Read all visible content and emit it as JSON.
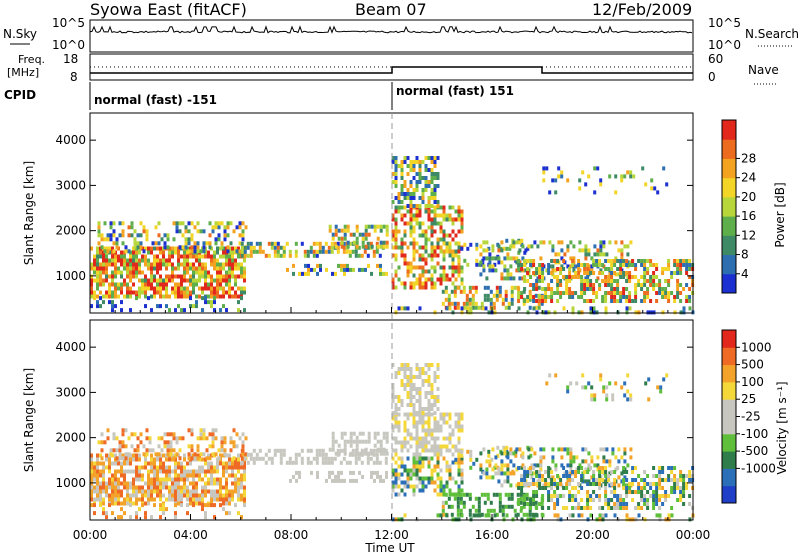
{
  "header": {
    "station": "Syowa East (fitACF)",
    "beam": "Beam 07",
    "date": "12/Feb/2009"
  },
  "top_panels": {
    "nsky_label": "N.Sky",
    "nsky_ticks": [
      "10^5",
      "10^0"
    ],
    "nsearch_label": "N.Search",
    "nsearch_ticks": [
      "10^5",
      "10^0"
    ],
    "freq_label_1": "Freq.",
    "freq_label_2": "[MHz]",
    "freq_ticks": [
      "18",
      "8"
    ],
    "nave_label": "Nave",
    "nave_ticks": [
      "60",
      "0"
    ],
    "cpid_label": "CPID",
    "cpid_segments": [
      {
        "label": "normal (fast) -151",
        "start_hour": 0
      },
      {
        "label": "normal (fast) 151",
        "start_hour": 12
      }
    ]
  },
  "chart_data": [
    {
      "type": "heatmap",
      "panel": "power",
      "ylabel": "Slant Range [km]",
      "ylim": [
        180,
        4600
      ],
      "yticks": [
        "1000",
        "2000",
        "3000",
        "4000"
      ],
      "xlim_hours": [
        0,
        24
      ],
      "colorbar_label": "Power [dB]",
      "colorbar_ticks": [
        "4",
        "8",
        "12",
        "16",
        "20",
        "24",
        "28"
      ],
      "colors": [
        "#1c2fd0",
        "#2d6eb0",
        "#3f8a66",
        "#5eae4c",
        "#b7d63a",
        "#f2d526",
        "#f3a31f",
        "#ec6b1f",
        "#e2281c"
      ]
    },
    {
      "type": "heatmap",
      "panel": "velocity",
      "ylabel": "Slant Range [km]",
      "ylim": [
        180,
        4600
      ],
      "yticks": [
        "1000",
        "2000",
        "3000",
        "4000"
      ],
      "xlim_hours": [
        0,
        24
      ],
      "colorbar_label": "Velocity [m s⁻¹]",
      "colorbar_ticks": [
        "1000",
        "500",
        "100",
        "25",
        "-25",
        "-100",
        "-500",
        "-1000"
      ],
      "colors": [
        "#1f3fc8",
        "#2a6fb8",
        "#2e7d4a",
        "#5fbf3a",
        "#c7c7c0",
        "#c7c7c0",
        "#f4d83a",
        "#f4a32a",
        "#ef6a24",
        "#e2281c"
      ]
    }
  ],
  "xaxis": {
    "label": "Time UT",
    "ticks": [
      "00:00",
      "04:00",
      "08:00",
      "12:00",
      "16:00",
      "20:00",
      "00:00"
    ]
  }
}
